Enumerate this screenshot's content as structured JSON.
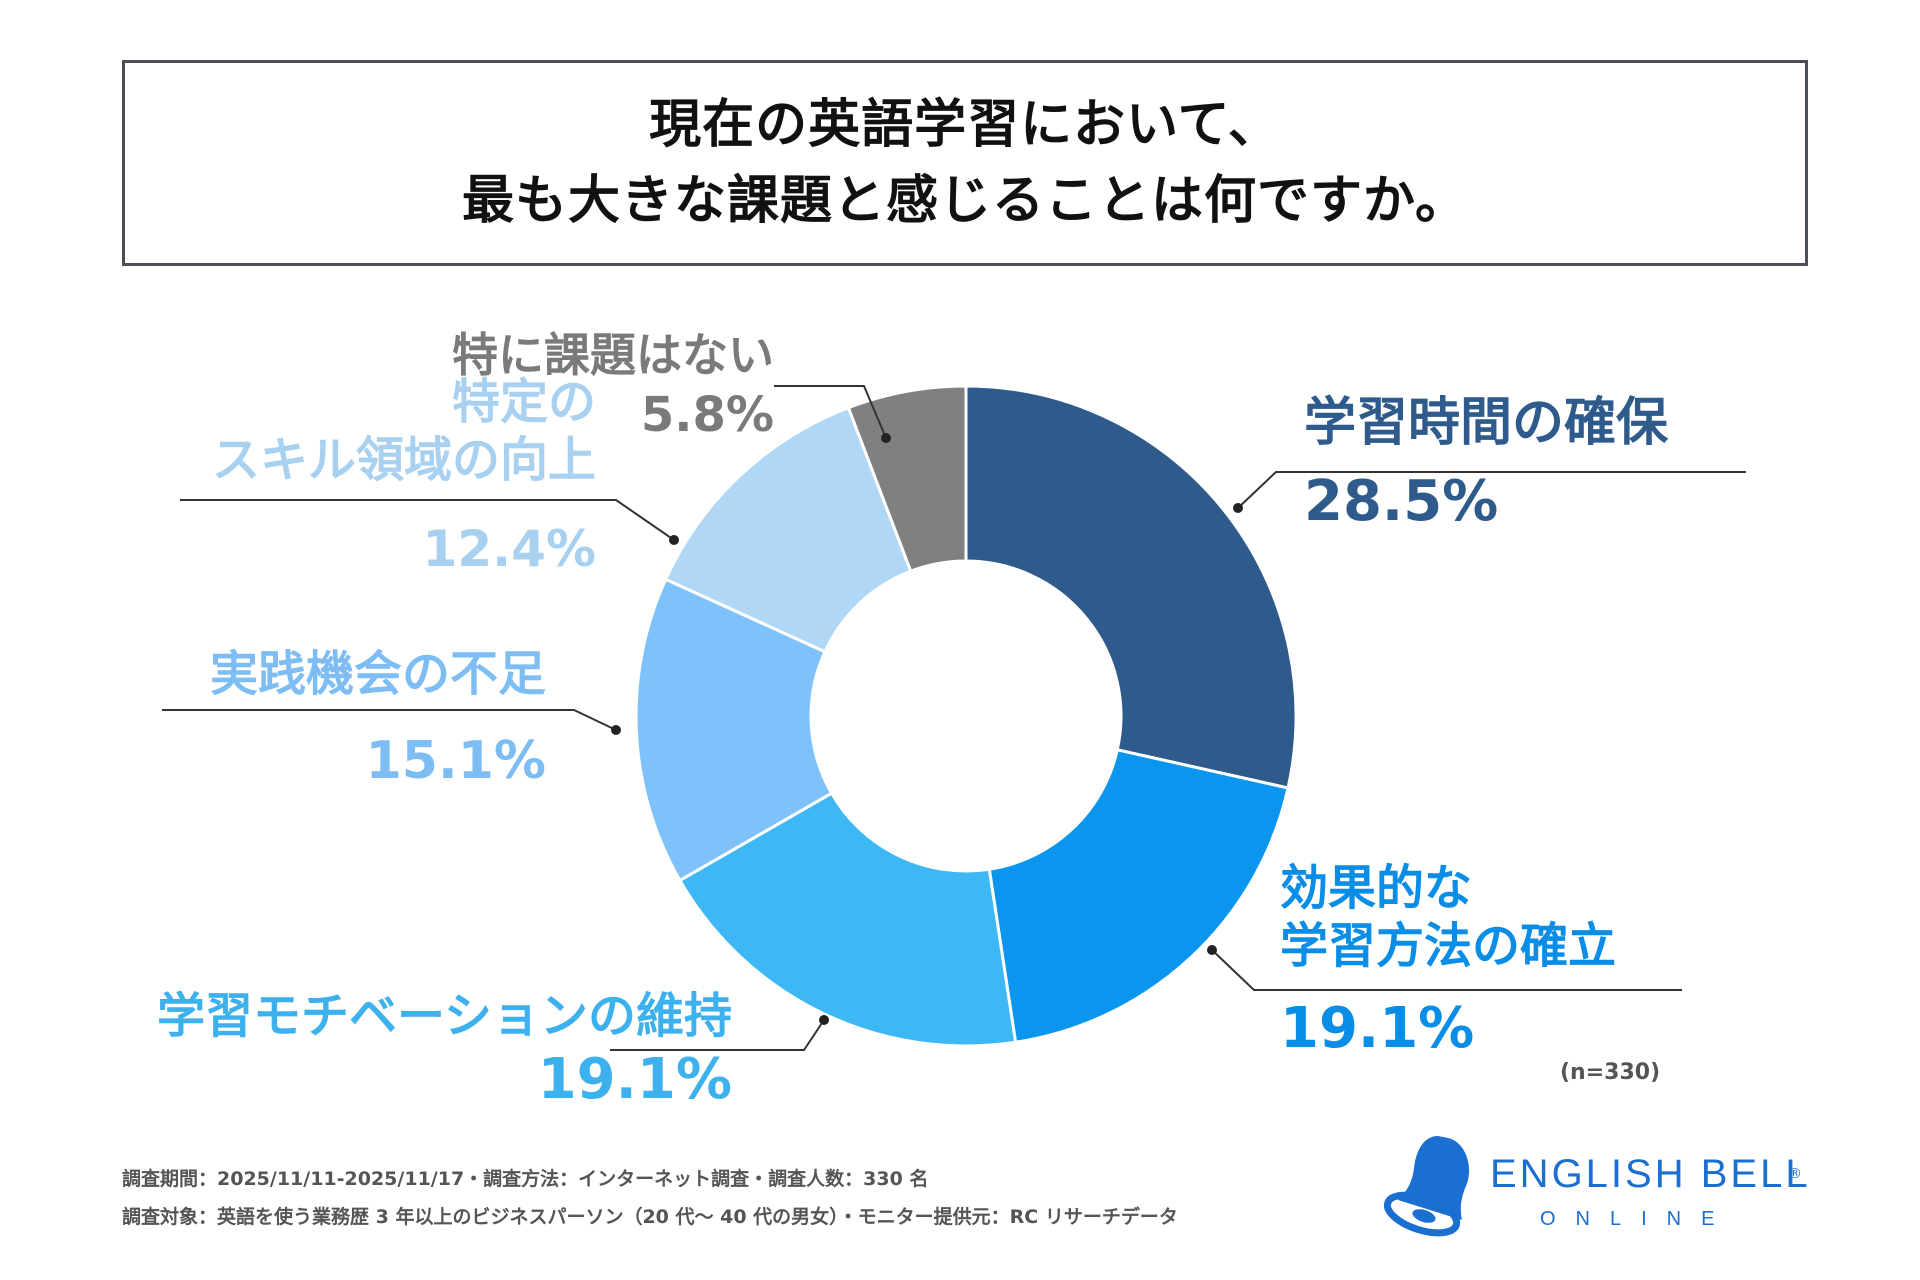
{
  "title": {
    "line1": "現在の英語学習において、",
    "line2": "最も大きな課題と感じることは何ですか。"
  },
  "chart_data": {
    "type": "pie",
    "title": "現在の英語学習において、最も大きな課題と感じることは何ですか。",
    "unit": "%",
    "donut": true,
    "slices": [
      {
        "label": "学習時間の確保",
        "label_lines": [
          "学習時間の確保"
        ],
        "value": 28.5,
        "pct_text": "28.5%",
        "color": "#2e5a8c",
        "label_color": "#2e5a8c"
      },
      {
        "label": "効果的な学習方法の確立",
        "label_lines": [
          "効果的な",
          "学習方法の確立"
        ],
        "value": 19.1,
        "pct_text": "19.1%",
        "color": "#0a96ee",
        "label_color": "#0a8de6"
      },
      {
        "label": "学習モチベーションの維持",
        "label_lines": [
          "学習モチベーションの維持"
        ],
        "value": 19.1,
        "pct_text": "19.1%",
        "color": "#3db8f5",
        "label_color": "#3db1ee"
      },
      {
        "label": "実践機会の不足",
        "label_lines": [
          "実践機会の不足"
        ],
        "value": 15.1,
        "pct_text": "15.1%",
        "color": "#7fc2fb",
        "label_color": "#7ebdf4"
      },
      {
        "label": "特定のスキル領域の向上",
        "label_lines": [
          "特定の",
          "スキル領域の向上"
        ],
        "value": 12.4,
        "pct_text": "12.4%",
        "color": "#b1d7f6",
        "label_color": "#a8d0f0"
      },
      {
        "label": "特に課題はない",
        "label_lines": [
          "特に課題はない"
        ],
        "value": 5.8,
        "pct_text": "5.8%",
        "color": "#808080",
        "label_color": "#7a7a7a"
      }
    ],
    "sample_note": "(n=330)"
  },
  "footer": {
    "line1": "調査期間：2025/11/11-2025/11/17・調査方法：インターネット調査・調査人数：330 名",
    "line2": "調査対象：英語を使う業務歴 3 年以上のビジネスパーソン（20 代～ 40 代の男女）・モニター提供元：RC リサーチデータ"
  },
  "brand": {
    "name": "ENGLISH BELL",
    "registered": "®",
    "sub": "ONLINE",
    "color": "#1a6fd1"
  }
}
